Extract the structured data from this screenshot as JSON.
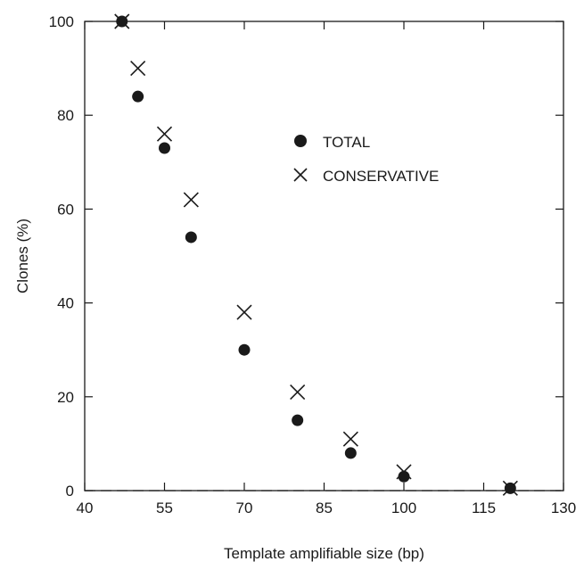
{
  "chart_data": {
    "type": "scatter",
    "title": "",
    "xlabel": "Template amplifiable size (bp)",
    "ylabel": "Clones (%)",
    "xlim": [
      40,
      130
    ],
    "ylim": [
      0,
      100
    ],
    "xticks": [
      40,
      55,
      70,
      85,
      100,
      115,
      130
    ],
    "yticks": [
      0,
      20,
      40,
      60,
      80,
      100
    ],
    "x_tick_labels": [
      "40",
      "55",
      "70",
      "85",
      "100",
      "115",
      "130"
    ],
    "y_tick_labels": [
      "0",
      "20",
      "40",
      "60",
      "80",
      "100"
    ],
    "grid": false,
    "legend_position": "upper-center",
    "reference_line": {
      "y": 0,
      "style": "dashed"
    },
    "series": [
      {
        "name": "TOTAL",
        "marker": "filled-circle",
        "color": "#1a1a1a",
        "points": [
          {
            "x": 47,
            "y": 100
          },
          {
            "x": 50,
            "y": 84
          },
          {
            "x": 55,
            "y": 73
          },
          {
            "x": 60,
            "y": 54
          },
          {
            "x": 70,
            "y": 30
          },
          {
            "x": 80,
            "y": 15
          },
          {
            "x": 90,
            "y": 8
          },
          {
            "x": 100,
            "y": 3
          },
          {
            "x": 120,
            "y": 0.5
          }
        ]
      },
      {
        "name": "CONSERVATIVE",
        "marker": "x-cross",
        "color": "#1a1a1a",
        "points": [
          {
            "x": 47,
            "y": 100
          },
          {
            "x": 50,
            "y": 90
          },
          {
            "x": 55,
            "y": 76
          },
          {
            "x": 60,
            "y": 62
          },
          {
            "x": 70,
            "y": 38
          },
          {
            "x": 80,
            "y": 21
          },
          {
            "x": 90,
            "y": 11
          },
          {
            "x": 100,
            "y": 4
          },
          {
            "x": 120,
            "y": 0.5
          }
        ]
      }
    ]
  }
}
